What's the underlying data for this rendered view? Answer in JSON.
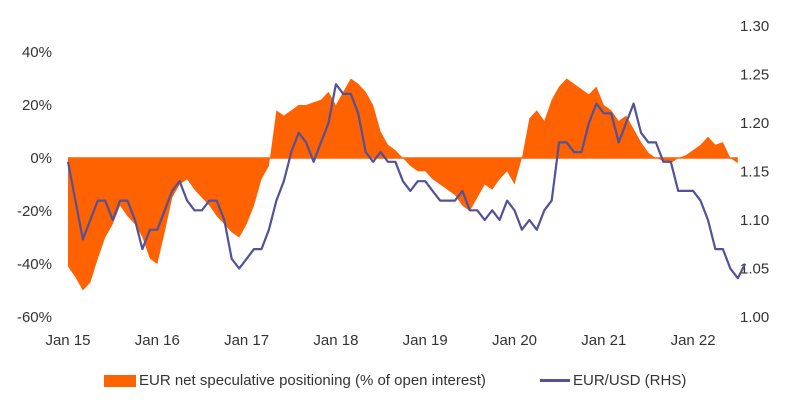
{
  "chart_data": {
    "type": "area+line",
    "title": "",
    "xlabel": "",
    "ylabel_left": "",
    "ylabel_right": "",
    "x_tick_labels": [
      "Jan 15",
      "Jan 16",
      "Jan 17",
      "Jan 18",
      "Jan 19",
      "Jan 20",
      "Jan 21",
      "Jan 22"
    ],
    "x_tick_years": [
      2015,
      2016,
      2017,
      2018,
      2019,
      2020,
      2021,
      2022
    ],
    "xlim": [
      2015,
      2022.6
    ],
    "left_axis": {
      "ticks": [
        -60,
        -40,
        -20,
        0,
        20,
        40
      ],
      "tick_labels": [
        "-60%",
        "-40%",
        "-20%",
        "0%",
        "20%",
        "40%"
      ],
      "ylim": [
        -60,
        40
      ]
    },
    "right_axis": {
      "ticks": [
        1.0,
        1.05,
        1.1,
        1.15,
        1.2,
        1.25,
        1.3
      ],
      "tick_labels": [
        "1.00",
        "1.05",
        "1.10",
        "1.15",
        "1.20",
        "1.25",
        "1.30"
      ],
      "ylim": [
        1.0,
        1.3
      ]
    },
    "legend_position": "bottom",
    "series": [
      {
        "name": "EUR net speculative positioning (% of open interest)",
        "type": "area",
        "axis": "left",
        "color": "#FF6200",
        "x_start": 2015.0,
        "x_step_months": 1,
        "values": [
          -41,
          -45,
          -50,
          -47,
          -38,
          -30,
          -25,
          -18,
          -22,
          -25,
          -30,
          -38,
          -40,
          -28,
          -15,
          -10,
          -8,
          -12,
          -15,
          -18,
          -22,
          -25,
          -28,
          -30,
          -25,
          -18,
          -8,
          -3,
          18,
          16,
          18,
          20,
          20,
          21,
          22,
          25,
          20,
          25,
          30,
          28,
          25,
          20,
          10,
          5,
          3,
          0,
          -3,
          -5,
          -5,
          -8,
          -10,
          -12,
          -14,
          -18,
          -20,
          -15,
          -10,
          -12,
          -8,
          -5,
          -10,
          0,
          15,
          18,
          14,
          22,
          27,
          30,
          28,
          26,
          24,
          27,
          20,
          18,
          14,
          16,
          11,
          6,
          2,
          0,
          -1,
          -2,
          0,
          1,
          3,
          5,
          8,
          5,
          6,
          0,
          -2
        ]
      },
      {
        "name": "EUR/USD (RHS)",
        "type": "line",
        "axis": "right",
        "color": "#525199",
        "x_start": 2015.0,
        "x_step_months": 1,
        "values": [
          1.16,
          1.12,
          1.08,
          1.1,
          1.12,
          1.12,
          1.1,
          1.12,
          1.12,
          1.1,
          1.07,
          1.09,
          1.09,
          1.11,
          1.13,
          1.14,
          1.12,
          1.11,
          1.11,
          1.12,
          1.12,
          1.1,
          1.06,
          1.05,
          1.06,
          1.07,
          1.07,
          1.09,
          1.12,
          1.14,
          1.17,
          1.19,
          1.18,
          1.16,
          1.18,
          1.2,
          1.24,
          1.23,
          1.23,
          1.21,
          1.17,
          1.16,
          1.17,
          1.16,
          1.16,
          1.14,
          1.13,
          1.14,
          1.14,
          1.13,
          1.12,
          1.12,
          1.12,
          1.13,
          1.11,
          1.11,
          1.1,
          1.11,
          1.1,
          1.12,
          1.11,
          1.09,
          1.1,
          1.09,
          1.11,
          1.12,
          1.18,
          1.18,
          1.17,
          1.17,
          1.2,
          1.22,
          1.21,
          1.21,
          1.18,
          1.2,
          1.22,
          1.19,
          1.18,
          1.18,
          1.16,
          1.16,
          1.13,
          1.13,
          1.13,
          1.12,
          1.1,
          1.07,
          1.07,
          1.05,
          1.04,
          1.055
        ]
      }
    ]
  },
  "legend": {
    "area_label": "EUR net speculative positioning (% of open interest)",
    "line_label": "EUR/USD (RHS)"
  }
}
